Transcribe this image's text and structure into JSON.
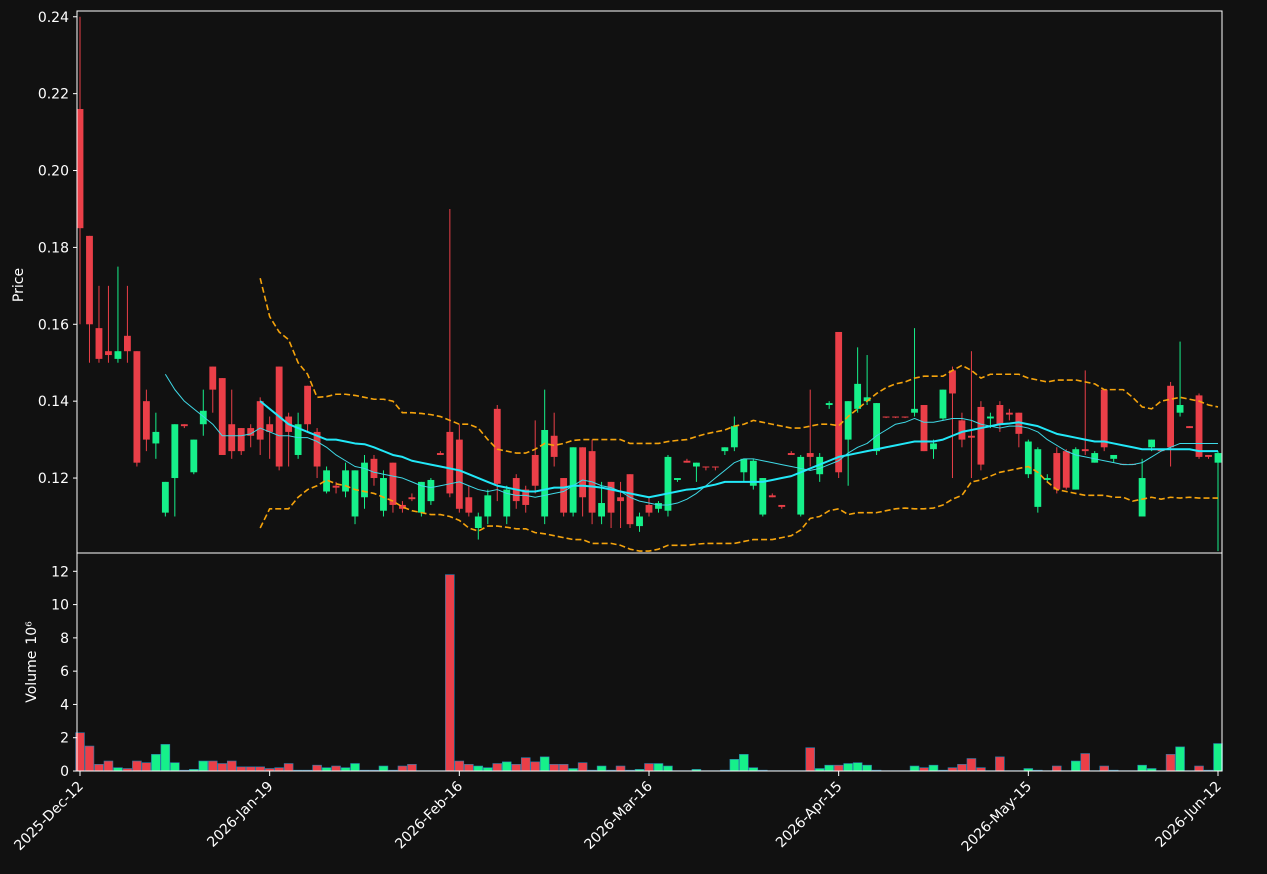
{
  "chart_data": {
    "type": "candlestick",
    "ylabel": "Price",
    "categories": [
      "2025-Dec-12",
      null,
      null,
      null,
      null,
      null,
      null,
      null,
      null,
      null,
      null,
      null,
      null,
      null,
      null,
      null,
      null,
      null,
      null,
      null,
      "2026-Jan-19",
      null,
      null,
      null,
      null,
      null,
      null,
      null,
      null,
      null,
      null,
      null,
      null,
      null,
      null,
      null,
      null,
      null,
      null,
      null,
      "2026-Feb-16",
      null,
      null,
      null,
      null,
      null,
      null,
      null,
      null,
      null,
      null,
      null,
      null,
      null,
      null,
      null,
      null,
      null,
      null,
      null,
      "2026-Mar-16",
      null,
      null,
      null,
      null,
      null,
      null,
      null,
      null,
      null,
      null,
      null,
      null,
      null,
      null,
      null,
      null,
      null,
      null,
      null,
      "2026-Apr-15",
      null,
      null,
      null,
      null,
      null,
      null,
      null,
      null,
      null,
      null,
      null,
      null,
      null,
      null,
      null,
      null,
      null,
      null,
      null,
      "2026-May-15",
      null,
      null,
      null,
      null,
      null,
      null,
      null,
      null,
      null,
      null,
      null,
      null,
      null,
      null,
      null,
      null,
      null,
      null,
      null,
      "2026-Jun-12"
    ],
    "open": [
      0.216,
      0.183,
      0.159,
      0.153,
      0.151,
      0.157,
      0.153,
      0.14,
      0.129,
      0.111,
      0.12,
      0.134,
      0.1215,
      0.134,
      0.149,
      0.146,
      0.134,
      0.133,
      0.133,
      0.14,
      0.134,
      0.149,
      0.136,
      0.126,
      0.144,
      0.132,
      0.1165,
      0.118,
      0.1165,
      0.11,
      0.115,
      0.125,
      0.1115,
      0.124,
      0.113,
      0.115,
      0.111,
      0.114,
      0.1265,
      0.132,
      0.13,
      0.115,
      0.107,
      0.11,
      0.138,
      0.11,
      0.12,
      0.117,
      0.126,
      0.11,
      0.131,
      0.12,
      0.111,
      0.128,
      0.127,
      0.11,
      0.119,
      0.115,
      0.121,
      0.1075,
      0.113,
      0.112,
      0.1115,
      0.1195,
      0.1245,
      0.123,
      0.123,
      0.123,
      0.127,
      0.128,
      0.1215,
      0.118,
      0.1105,
      0.1155,
      0.113,
      0.1265,
      0.1105,
      0.1265,
      0.121,
      0.139,
      0.158,
      0.13,
      0.138,
      0.14,
      0.127,
      0.136,
      0.136,
      0.136,
      0.137,
      0.139,
      0.1275,
      0.1355,
      0.148,
      0.135,
      0.131,
      0.1385,
      0.1355,
      0.139,
      0.137,
      0.137,
      0.121,
      0.1125,
      0.1195,
      0.1265,
      0.127,
      0.117,
      0.1275,
      0.124,
      0.143,
      0.125,
      0.1237,
      0.1237,
      0.11,
      0.128,
      0.1275,
      0.144,
      0.137,
      0.1335,
      0.1415,
      0.126,
      0.124
    ],
    "high": [
      0.24,
      0.183,
      0.17,
      0.17,
      0.175,
      0.17,
      0.153,
      0.143,
      0.137,
      0.119,
      0.134,
      0.134,
      0.13,
      0.143,
      0.149,
      0.146,
      0.143,
      0.133,
      0.134,
      0.141,
      0.136,
      0.149,
      0.137,
      0.137,
      0.144,
      0.133,
      0.123,
      0.119,
      0.124,
      0.122,
      0.126,
      0.126,
      0.122,
      0.124,
      0.114,
      0.116,
      0.119,
      0.12,
      0.127,
      0.19,
      0.134,
      0.118,
      0.111,
      0.117,
      0.139,
      0.118,
      0.121,
      0.118,
      0.135,
      0.143,
      0.137,
      0.12,
      0.128,
      0.128,
      0.13,
      0.119,
      0.119,
      0.119,
      0.121,
      0.111,
      0.115,
      0.114,
      0.126,
      0.12,
      0.125,
      0.124,
      0.123,
      0.123,
      0.128,
      0.136,
      0.125,
      0.125,
      0.12,
      0.116,
      0.113,
      0.127,
      0.126,
      0.143,
      0.1265,
      0.14,
      0.158,
      0.14,
      0.154,
      0.152,
      0.1395,
      0.136,
      0.136,
      0.136,
      0.159,
      0.139,
      0.13,
      0.143,
      0.149,
      0.137,
      0.153,
      0.14,
      0.137,
      0.14,
      0.138,
      0.137,
      0.13,
      0.128,
      0.121,
      0.128,
      0.1275,
      0.128,
      0.148,
      0.127,
      0.143,
      0.126,
      0.1237,
      0.1237,
      0.125,
      0.13,
      0.1275,
      0.145,
      0.1555,
      0.1335,
      0.142,
      0.126,
      0.127
    ],
    "low": [
      0.16,
      0.15,
      0.15,
      0.15,
      0.15,
      0.15,
      0.123,
      0.127,
      0.125,
      0.11,
      0.11,
      0.133,
      0.121,
      0.131,
      0.137,
      0.126,
      0.125,
      0.126,
      0.128,
      0.126,
      0.125,
      0.122,
      0.123,
      0.125,
      0.132,
      0.12,
      0.116,
      0.116,
      0.115,
      0.108,
      0.112,
      0.118,
      0.11,
      0.111,
      0.111,
      0.114,
      0.11,
      0.113,
      0.126,
      0.115,
      0.111,
      0.11,
      0.104,
      0.108,
      0.114,
      0.108,
      0.112,
      0.111,
      0.116,
      0.108,
      0.123,
      0.11,
      0.11,
      0.11,
      0.108,
      0.108,
      0.107,
      0.107,
      0.107,
      0.106,
      0.11,
      0.111,
      0.11,
      0.119,
      0.124,
      0.119,
      0.122,
      0.122,
      0.126,
      0.127,
      0.119,
      0.117,
      0.11,
      0.115,
      0.112,
      0.126,
      0.11,
      0.123,
      0.119,
      0.138,
      0.12,
      0.118,
      0.137,
      0.139,
      0.126,
      0.1356,
      0.1356,
      0.1356,
      0.136,
      0.127,
      0.125,
      0.135,
      0.12,
      0.128,
      0.12,
      0.122,
      0.133,
      0.132,
      0.135,
      0.128,
      0.12,
      0.111,
      0.119,
      0.116,
      0.117,
      0.117,
      0.126,
      0.124,
      0.127,
      0.124,
      0.1234,
      0.1234,
      0.11,
      0.127,
      0.127,
      0.123,
      0.136,
      0.133,
      0.125,
      0.125,
      0.101
    ],
    "close": [
      0.185,
      0.16,
      0.151,
      0.152,
      0.153,
      0.153,
      0.124,
      0.13,
      0.132,
      0.119,
      0.134,
      0.1335,
      0.13,
      0.1375,
      0.143,
      0.126,
      0.127,
      0.127,
      0.131,
      0.13,
      0.132,
      0.123,
      0.132,
      0.134,
      0.134,
      0.123,
      0.122,
      0.1175,
      0.122,
      0.122,
      0.124,
      0.12,
      0.12,
      0.113,
      0.112,
      0.1145,
      0.119,
      0.1195,
      0.126,
      0.116,
      0.112,
      0.111,
      0.11,
      0.1155,
      0.1185,
      0.117,
      0.114,
      0.113,
      0.118,
      0.1325,
      0.1255,
      0.111,
      0.128,
      0.115,
      0.111,
      0.1135,
      0.111,
      0.114,
      0.108,
      0.11,
      0.111,
      0.1135,
      0.1255,
      0.12,
      0.124,
      0.124,
      0.1228,
      0.1228,
      0.128,
      0.1335,
      0.125,
      0.1245,
      0.12,
      0.115,
      0.1125,
      0.126,
      0.1255,
      0.1255,
      0.1255,
      0.1395,
      0.1215,
      0.14,
      0.1445,
      0.141,
      0.1395,
      0.1358,
      0.1358,
      0.1358,
      0.138,
      0.127,
      0.129,
      0.143,
      0.142,
      0.13,
      0.1305,
      0.1235,
      0.136,
      0.134,
      0.1365,
      0.1315,
      0.1295,
      0.1275,
      0.12,
      0.117,
      0.1175,
      0.1275,
      0.127,
      0.1265,
      0.128,
      0.126,
      0.1234,
      0.1234,
      0.12,
      0.13,
      0.127,
      0.128,
      0.139,
      0.133,
      0.1255,
      0.1255,
      0.1265
    ],
    "up_color": "#16f08a",
    "down_color": "#ea3f48",
    "series": [
      {
        "color": "#3fd9e6",
        "width": 1,
        "dashed": false,
        "values": [
          null,
          null,
          null,
          null,
          null,
          null,
          null,
          null,
          null,
          0.147,
          0.143,
          0.14,
          0.138,
          0.136,
          0.134,
          0.131,
          0.131,
          0.131,
          0.1315,
          0.133,
          0.132,
          0.131,
          0.131,
          0.1305,
          0.1305,
          0.1295,
          0.128,
          0.126,
          0.1245,
          0.123,
          0.1225,
          0.1215,
          0.121,
          0.1205,
          0.12,
          0.119,
          0.118,
          0.1175,
          0.118,
          0.1185,
          0.119,
          0.118,
          0.117,
          0.1165,
          0.117,
          0.116,
          0.1155,
          0.1155,
          0.115,
          0.1155,
          0.116,
          0.1165,
          0.118,
          0.1195,
          0.119,
          0.118,
          0.1175,
          0.1165,
          0.115,
          0.114,
          0.1135,
          0.113,
          0.113,
          0.1135,
          0.1145,
          0.116,
          0.118,
          0.12,
          0.122,
          0.124,
          0.125,
          0.125,
          0.1245,
          0.124,
          0.1235,
          0.123,
          0.1225,
          0.122,
          0.1225,
          0.1235,
          0.1245,
          0.1265,
          0.128,
          0.129,
          0.131,
          0.1325,
          0.134,
          0.1345,
          0.1355,
          0.1345,
          0.1345,
          0.135,
          0.1355,
          0.1355,
          0.135,
          0.134,
          0.1335,
          0.133,
          0.1335,
          0.1335,
          0.133,
          0.132,
          0.13,
          0.1285,
          0.127,
          0.126,
          0.1255,
          0.125,
          0.1245,
          0.124,
          0.1235,
          0.1235,
          0.124,
          0.1255,
          0.127,
          0.128,
          0.129,
          0.129,
          0.129,
          0.129,
          0.129
        ]
      },
      {
        "color": "#22e8f8",
        "width": 2,
        "dashed": false,
        "values": [
          null,
          null,
          null,
          null,
          null,
          null,
          null,
          null,
          null,
          null,
          null,
          null,
          null,
          null,
          null,
          null,
          null,
          null,
          null,
          0.14,
          0.138,
          0.136,
          0.134,
          0.133,
          0.132,
          0.131,
          0.13,
          0.13,
          0.1295,
          0.129,
          0.1288,
          0.128,
          0.127,
          0.126,
          0.1255,
          0.1245,
          0.124,
          0.1235,
          0.123,
          0.1225,
          0.122,
          0.121,
          0.12,
          0.119,
          0.118,
          0.1175,
          0.117,
          0.1165,
          0.1165,
          0.117,
          0.1175,
          0.1175,
          0.118,
          0.118,
          0.1178,
          0.1175,
          0.117,
          0.1165,
          0.116,
          0.1155,
          0.115,
          0.1155,
          0.116,
          0.1165,
          0.117,
          0.1172,
          0.1178,
          0.1183,
          0.119,
          0.119,
          0.119,
          0.119,
          0.119,
          0.1195,
          0.12,
          0.1205,
          0.1215,
          0.1225,
          0.1235,
          0.1245,
          0.1255,
          0.126,
          0.1265,
          0.127,
          0.1275,
          0.128,
          0.1285,
          0.129,
          0.1295,
          0.1295,
          0.1295,
          0.13,
          0.131,
          0.132,
          0.1325,
          0.133,
          0.1335,
          0.134,
          0.1342,
          0.1345,
          0.134,
          0.1335,
          0.1325,
          0.1315,
          0.131,
          0.1305,
          0.13,
          0.1295,
          0.1295,
          0.129,
          0.1285,
          0.128,
          0.1275,
          0.1275,
          0.1275,
          0.1275,
          0.1275,
          0.1275,
          0.127,
          0.127,
          0.127
        ]
      },
      {
        "color": "#f5a30c",
        "width": 1.6,
        "dashed": true,
        "values": [
          null,
          null,
          null,
          null,
          null,
          null,
          null,
          null,
          null,
          null,
          null,
          null,
          null,
          null,
          null,
          null,
          null,
          null,
          null,
          0.172,
          0.162,
          0.158,
          0.156,
          0.15,
          0.147,
          0.141,
          0.1412,
          0.1418,
          0.1418,
          0.1415,
          0.141,
          0.1405,
          0.1405,
          0.14,
          0.137,
          0.137,
          0.1368,
          0.1365,
          0.136,
          0.135,
          0.134,
          0.134,
          0.133,
          0.13,
          0.1275,
          0.127,
          0.1265,
          0.1265,
          0.1275,
          0.129,
          0.1285,
          0.129,
          0.1298,
          0.13,
          0.13,
          0.13,
          0.13,
          0.13,
          0.129,
          0.129,
          0.129,
          0.129,
          0.1295,
          0.1298,
          0.13,
          0.1308,
          0.1315,
          0.132,
          0.1325,
          0.1335,
          0.134,
          0.135,
          0.1345,
          0.134,
          0.1335,
          0.133,
          0.133,
          0.1335,
          0.134,
          0.134,
          0.1336,
          0.136,
          0.138,
          0.14,
          0.142,
          0.1435,
          0.1445,
          0.145,
          0.146,
          0.1465,
          0.1465,
          0.1465,
          0.148,
          0.1493,
          0.148,
          0.146,
          0.147,
          0.147,
          0.147,
          0.147,
          0.146,
          0.1455,
          0.145,
          0.1455,
          0.1455,
          0.1455,
          0.145,
          0.1445,
          0.143,
          0.143,
          0.143,
          0.141,
          0.1385,
          0.138,
          0.14,
          0.1405,
          0.141,
          0.1405,
          0.14,
          0.139,
          0.1385
        ]
      },
      {
        "color": "#f5a30c",
        "width": 1.6,
        "dashed": true,
        "values": [
          null,
          null,
          null,
          null,
          null,
          null,
          null,
          null,
          null,
          null,
          null,
          null,
          null,
          null,
          null,
          null,
          null,
          null,
          null,
          0.107,
          0.112,
          0.112,
          0.112,
          0.115,
          0.117,
          0.118,
          0.1195,
          0.1185,
          0.118,
          0.117,
          0.1165,
          0.116,
          0.115,
          0.114,
          0.1125,
          0.1115,
          0.111,
          0.1105,
          0.1105,
          0.11,
          0.109,
          0.107,
          0.1062,
          0.1075,
          0.1075,
          0.1072,
          0.1068,
          0.1068,
          0.1058,
          0.1055,
          0.105,
          0.1045,
          0.104,
          0.104,
          0.103,
          0.103,
          0.103,
          0.1025,
          0.1015,
          0.101,
          0.101,
          0.1015,
          0.1025,
          0.1025,
          0.1025,
          0.1028,
          0.103,
          0.103,
          0.103,
          0.103,
          0.1035,
          0.104,
          0.104,
          0.104,
          0.1045,
          0.105,
          0.1065,
          0.1095,
          0.11,
          0.1115,
          0.112,
          0.1105,
          0.111,
          0.111,
          0.111,
          0.1115,
          0.112,
          0.1122,
          0.112,
          0.112,
          0.1122,
          0.113,
          0.1145,
          0.1155,
          0.119,
          0.1195,
          0.1205,
          0.1215,
          0.122,
          0.1225,
          0.123,
          0.1215,
          0.119,
          0.117,
          0.1165,
          0.116,
          0.1155,
          0.1155,
          0.1155,
          0.115,
          0.115,
          0.114,
          0.1145,
          0.115,
          0.1145,
          0.115,
          0.1148,
          0.115,
          0.1148,
          0.1148,
          0.1148
        ]
      }
    ],
    "ylim": [
      0.1005,
      0.2415
    ],
    "yticks": [
      0.12,
      0.14,
      0.16,
      0.18,
      {
        "value": 0.2,
        "label": "0.20"
      },
      0.22,
      0.24
    ],
    "grid": true,
    "volume": {
      "ylabel": "Volume",
      "exponent": "10⁶",
      "values": [
        2.3,
        1.5,
        0.4,
        0.6,
        0.2,
        0.15,
        0.6,
        0.5,
        1.0,
        1.6,
        0.5,
        0.05,
        0.1,
        0.6,
        0.6,
        0.45,
        0.6,
        0.25,
        0.25,
        0.25,
        0.15,
        0.2,
        0.45,
        0.05,
        0.05,
        0.35,
        0.2,
        0.3,
        0.2,
        0.45,
        0.05,
        0.05,
        0.3,
        0.05,
        0.3,
        0.4,
        0.02,
        0.02,
        0.02,
        11.8,
        0.6,
        0.4,
        0.3,
        0.2,
        0.45,
        0.55,
        0.4,
        0.8,
        0.55,
        0.85,
        0.4,
        0.4,
        0.15,
        0.5,
        0.05,
        0.3,
        0.05,
        0.3,
        0.05,
        0.1,
        0.45,
        0.45,
        0.3,
        0.02,
        0.02,
        0.1,
        0.02,
        0.02,
        0.05,
        0.7,
        1.0,
        0.2,
        0.05,
        0.02,
        0.02,
        0.02,
        0.02,
        1.4,
        0.15,
        0.35,
        0.35,
        0.45,
        0.5,
        0.35,
        0.05,
        0.02,
        0.02,
        0.02,
        0.3,
        0.2,
        0.35,
        0.05,
        0.2,
        0.4,
        0.75,
        0.2,
        0.02,
        0.85,
        0.02,
        0.02,
        0.15,
        0.05,
        0.02,
        0.3,
        0.02,
        0.6,
        1.05,
        0.02,
        0.3,
        0.05,
        0.02,
        0.02,
        0.35,
        0.15,
        0.02,
        1.0,
        1.45,
        0.02,
        0.3,
        0.05,
        1.65
      ],
      "ylim": [
        0,
        13.1
      ],
      "yticks": [
        0,
        2,
        4,
        6,
        8,
        10,
        12
      ]
    }
  }
}
